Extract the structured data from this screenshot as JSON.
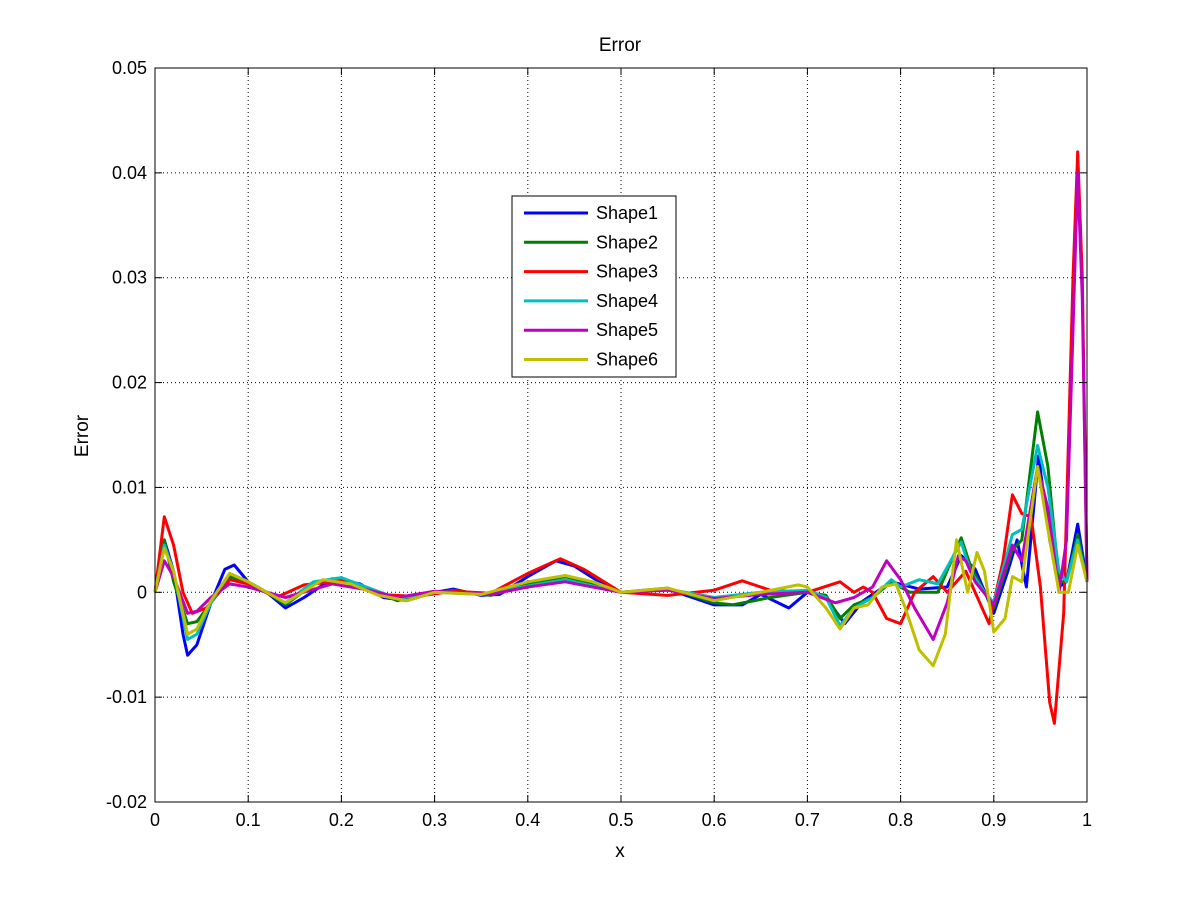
{
  "chart_data": {
    "type": "line",
    "title": "Error",
    "xlabel": "x",
    "ylabel": "Error",
    "xlim": [
      0,
      1
    ],
    "ylim": [
      -0.02,
      0.05
    ],
    "xticks": [
      "0",
      "0.1",
      "0.2",
      "0.3",
      "0.4",
      "0.5",
      "0.6",
      "0.7",
      "0.8",
      "0.9",
      "1"
    ],
    "yticks": [
      "-0.02",
      "-0.01",
      "0",
      "0.01",
      "0.02",
      "0.03",
      "0.04",
      "0.05"
    ],
    "grid": true,
    "legend_position": "upper-center",
    "series": [
      {
        "name": "Shape1",
        "color": "#0000ff",
        "points": [
          [
            0,
            0
          ],
          [
            0.01,
            0.005
          ],
          [
            0.02,
            0.002
          ],
          [
            0.03,
            -0.004
          ],
          [
            0.035,
            -0.006
          ],
          [
            0.045,
            -0.005
          ],
          [
            0.06,
            -0.001
          ],
          [
            0.075,
            0.0022
          ],
          [
            0.085,
            0.0026
          ],
          [
            0.1,
            0.001
          ],
          [
            0.12,
            0
          ],
          [
            0.14,
            -0.0015
          ],
          [
            0.16,
            -0.0005
          ],
          [
            0.19,
            0.0013
          ],
          [
            0.22,
            0.0008
          ],
          [
            0.245,
            -0.0005
          ],
          [
            0.27,
            -0.0008
          ],
          [
            0.3,
            0
          ],
          [
            0.32,
            0.0003
          ],
          [
            0.35,
            -0.0003
          ],
          [
            0.37,
            -0.0002
          ],
          [
            0.4,
            0.0015
          ],
          [
            0.43,
            0.003
          ],
          [
            0.45,
            0.0025
          ],
          [
            0.48,
            0.0008
          ],
          [
            0.5,
            0
          ],
          [
            0.55,
            0.0003
          ],
          [
            0.6,
            -0.0012
          ],
          [
            0.63,
            -0.0012
          ],
          [
            0.65,
            -0.0002
          ],
          [
            0.68,
            -0.0015
          ],
          [
            0.7,
            0
          ],
          [
            0.72,
            -0.0005
          ],
          [
            0.74,
            -0.003
          ],
          [
            0.76,
            -0.0008
          ],
          [
            0.79,
            0.001
          ],
          [
            0.82,
            0.0003
          ],
          [
            0.85,
            0.0005
          ],
          [
            0.865,
            0.0035
          ],
          [
            0.88,
            0.0022
          ],
          [
            0.9,
            -0.002
          ],
          [
            0.915,
            0.002
          ],
          [
            0.925,
            0.005
          ],
          [
            0.935,
            0.0005
          ],
          [
            0.948,
            0.013
          ],
          [
            0.96,
            0.005
          ],
          [
            0.97,
            0.0005
          ],
          [
            0.978,
            0.001
          ],
          [
            0.99,
            0.0065
          ],
          [
            1,
            0.001
          ]
        ]
      },
      {
        "name": "Shape2",
        "color": "#008000",
        "points": [
          [
            0,
            0
          ],
          [
            0.01,
            0.005
          ],
          [
            0.02,
            0.001
          ],
          [
            0.035,
            -0.003
          ],
          [
            0.045,
            -0.0028
          ],
          [
            0.06,
            -0.001
          ],
          [
            0.08,
            0.0015
          ],
          [
            0.1,
            0.0008
          ],
          [
            0.12,
            0
          ],
          [
            0.14,
            -0.0012
          ],
          [
            0.17,
            0.0008
          ],
          [
            0.2,
            0.0012
          ],
          [
            0.23,
            0.0003
          ],
          [
            0.26,
            -0.0008
          ],
          [
            0.29,
            -0.0002
          ],
          [
            0.32,
            0.0002
          ],
          [
            0.36,
            -0.0003
          ],
          [
            0.4,
            0.0008
          ],
          [
            0.44,
            0.0015
          ],
          [
            0.47,
            0.0008
          ],
          [
            0.5,
            0
          ],
          [
            0.55,
            0.0004
          ],
          [
            0.6,
            -0.001
          ],
          [
            0.62,
            -0.0012
          ],
          [
            0.66,
            -0.0005
          ],
          [
            0.7,
            0
          ],
          [
            0.72,
            -0.0003
          ],
          [
            0.735,
            -0.0025
          ],
          [
            0.75,
            -0.0012
          ],
          [
            0.77,
            -0.0005
          ],
          [
            0.79,
            0.001
          ],
          [
            0.81,
            0
          ],
          [
            0.84,
            0
          ],
          [
            0.865,
            0.0052
          ],
          [
            0.875,
            0.0025
          ],
          [
            0.89,
            0
          ],
          [
            0.9,
            -0.0015
          ],
          [
            0.92,
            0.004
          ],
          [
            0.93,
            0.005
          ],
          [
            0.947,
            0.0172
          ],
          [
            0.958,
            0.012
          ],
          [
            0.97,
            0.001
          ],
          [
            0.978,
            0.001
          ],
          [
            0.99,
            0.0055
          ],
          [
            1,
            0.001
          ]
        ]
      },
      {
        "name": "Shape3",
        "color": "#ff0000",
        "points": [
          [
            0,
            0
          ],
          [
            0.01,
            0.0072
          ],
          [
            0.02,
            0.0045
          ],
          [
            0.03,
            0
          ],
          [
            0.04,
            -0.002
          ],
          [
            0.055,
            -0.0015
          ],
          [
            0.08,
            0.0012
          ],
          [
            0.1,
            0.0008
          ],
          [
            0.13,
            -0.0005
          ],
          [
            0.16,
            0.0007
          ],
          [
            0.2,
            0.0011
          ],
          [
            0.24,
            -0.0002
          ],
          [
            0.28,
            -0.0004
          ],
          [
            0.32,
            0.0001
          ],
          [
            0.36,
            -0.0001
          ],
          [
            0.4,
            0.0018
          ],
          [
            0.435,
            0.0032
          ],
          [
            0.46,
            0.0022
          ],
          [
            0.5,
            0
          ],
          [
            0.55,
            -0.0003
          ],
          [
            0.6,
            0.0002
          ],
          [
            0.63,
            0.0011
          ],
          [
            0.66,
            0.0002
          ],
          [
            0.7,
            0
          ],
          [
            0.735,
            0.001
          ],
          [
            0.75,
            0
          ],
          [
            0.76,
            0.0005
          ],
          [
            0.77,
            0
          ],
          [
            0.785,
            -0.0025
          ],
          [
            0.8,
            -0.003
          ],
          [
            0.815,
            0
          ],
          [
            0.835,
            0.0015
          ],
          [
            0.85,
            0
          ],
          [
            0.87,
            0.002
          ],
          [
            0.885,
            -0.001
          ],
          [
            0.895,
            -0.003
          ],
          [
            0.91,
            0.003
          ],
          [
            0.92,
            0.0093
          ],
          [
            0.93,
            0.0075
          ],
          [
            0.94,
            0.0072
          ],
          [
            0.95,
            0.0005
          ],
          [
            0.96,
            -0.0105
          ],
          [
            0.965,
            -0.0125
          ],
          [
            0.975,
            -0.002
          ],
          [
            0.985,
            0.03
          ],
          [
            0.99,
            0.042
          ],
          [
            0.995,
            0.03
          ],
          [
            1,
            0.001
          ]
        ]
      },
      {
        "name": "Shape4",
        "color": "#00bfbf",
        "points": [
          [
            0,
            0
          ],
          [
            0.01,
            0.0045
          ],
          [
            0.02,
            0.002
          ],
          [
            0.035,
            -0.0045
          ],
          [
            0.045,
            -0.004
          ],
          [
            0.06,
            -0.001
          ],
          [
            0.08,
            0.0018
          ],
          [
            0.1,
            0.001
          ],
          [
            0.12,
            0
          ],
          [
            0.14,
            -0.001
          ],
          [
            0.17,
            0.001
          ],
          [
            0.2,
            0.0014
          ],
          [
            0.23,
            0.0004
          ],
          [
            0.26,
            -0.0006
          ],
          [
            0.3,
            0
          ],
          [
            0.35,
            -0.0002
          ],
          [
            0.4,
            0.0006
          ],
          [
            0.44,
            0.0012
          ],
          [
            0.47,
            0.0006
          ],
          [
            0.5,
            0
          ],
          [
            0.55,
            0.0003
          ],
          [
            0.6,
            -0.0005
          ],
          [
            0.65,
            0
          ],
          [
            0.7,
            0.0002
          ],
          [
            0.72,
            -0.0005
          ],
          [
            0.735,
            -0.0032
          ],
          [
            0.75,
            -0.0015
          ],
          [
            0.77,
            -0.0005
          ],
          [
            0.79,
            0.0012
          ],
          [
            0.8,
            0.0005
          ],
          [
            0.82,
            0.0012
          ],
          [
            0.84,
            0.0008
          ],
          [
            0.865,
            0.0048
          ],
          [
            0.875,
            0.002
          ],
          [
            0.89,
            0
          ],
          [
            0.9,
            -0.001
          ],
          [
            0.92,
            0.0055
          ],
          [
            0.93,
            0.006
          ],
          [
            0.947,
            0.014
          ],
          [
            0.958,
            0.01
          ],
          [
            0.97,
            0.002
          ],
          [
            0.978,
            0.001
          ],
          [
            0.99,
            0.005
          ],
          [
            1,
            0.001
          ]
        ]
      },
      {
        "name": "Shape5",
        "color": "#bf00bf",
        "points": [
          [
            0,
            0
          ],
          [
            0.01,
            0.003
          ],
          [
            0.02,
            0.0015
          ],
          [
            0.035,
            -0.002
          ],
          [
            0.045,
            -0.0018
          ],
          [
            0.06,
            -0.0005
          ],
          [
            0.08,
            0.0008
          ],
          [
            0.1,
            0.0005
          ],
          [
            0.14,
            -0.0005
          ],
          [
            0.19,
            0.0008
          ],
          [
            0.23,
            0.0002
          ],
          [
            0.26,
            -0.0005
          ],
          [
            0.3,
            0.0001
          ],
          [
            0.36,
            -0.0002
          ],
          [
            0.4,
            0.0005
          ],
          [
            0.44,
            0.001
          ],
          [
            0.5,
            0
          ],
          [
            0.55,
            0.0002
          ],
          [
            0.6,
            -0.0006
          ],
          [
            0.65,
            -0.0002
          ],
          [
            0.7,
            0
          ],
          [
            0.73,
            -0.001
          ],
          [
            0.75,
            -0.0005
          ],
          [
            0.77,
            0.0005
          ],
          [
            0.785,
            0.003
          ],
          [
            0.8,
            0.0012
          ],
          [
            0.815,
            -0.0015
          ],
          [
            0.835,
            -0.0045
          ],
          [
            0.85,
            -0.001
          ],
          [
            0.862,
            0.0035
          ],
          [
            0.87,
            0.003
          ],
          [
            0.88,
            0.001
          ],
          [
            0.9,
            -0.0012
          ],
          [
            0.92,
            0.0045
          ],
          [
            0.93,
            0.003
          ],
          [
            0.947,
            0.012
          ],
          [
            0.958,
            0.008
          ],
          [
            0.97,
            0
          ],
          [
            0.978,
            0.005
          ],
          [
            0.985,
            0.025
          ],
          [
            0.99,
            0.04
          ],
          [
            0.995,
            0.028
          ],
          [
            1,
            0.001
          ]
        ]
      },
      {
        "name": "Shape6",
        "color": "#bfbf00",
        "points": [
          [
            0,
            0
          ],
          [
            0.01,
            0.0042
          ],
          [
            0.02,
            0.002
          ],
          [
            0.035,
            -0.004
          ],
          [
            0.045,
            -0.0035
          ],
          [
            0.06,
            -0.0008
          ],
          [
            0.08,
            0.0018
          ],
          [
            0.1,
            0.001
          ],
          [
            0.12,
            0
          ],
          [
            0.14,
            -0.001
          ],
          [
            0.18,
            0.0012
          ],
          [
            0.21,
            0.0008
          ],
          [
            0.24,
            -0.0003
          ],
          [
            0.27,
            -0.0008
          ],
          [
            0.3,
            0
          ],
          [
            0.35,
            -0.0002
          ],
          [
            0.4,
            0.001
          ],
          [
            0.44,
            0.0016
          ],
          [
            0.47,
            0.001
          ],
          [
            0.5,
            0
          ],
          [
            0.55,
            0.0004
          ],
          [
            0.6,
            -0.0008
          ],
          [
            0.65,
            0
          ],
          [
            0.69,
            0.0007
          ],
          [
            0.7,
            0.0005
          ],
          [
            0.72,
            -0.0015
          ],
          [
            0.735,
            -0.0035
          ],
          [
            0.75,
            -0.0015
          ],
          [
            0.765,
            -0.0012
          ],
          [
            0.78,
            0.0005
          ],
          [
            0.795,
            0.0008
          ],
          [
            0.805,
            -0.0015
          ],
          [
            0.82,
            -0.0055
          ],
          [
            0.835,
            -0.007
          ],
          [
            0.848,
            -0.004
          ],
          [
            0.86,
            0.005
          ],
          [
            0.872,
            0
          ],
          [
            0.882,
            0.0038
          ],
          [
            0.89,
            0.002
          ],
          [
            0.9,
            -0.0038
          ],
          [
            0.912,
            -0.0025
          ],
          [
            0.92,
            0.0015
          ],
          [
            0.93,
            0.001
          ],
          [
            0.947,
            0.012
          ],
          [
            0.958,
            0.006
          ],
          [
            0.97,
            0
          ],
          [
            0.98,
            0
          ],
          [
            0.99,
            0.0045
          ],
          [
            1,
            0.001
          ]
        ]
      }
    ]
  }
}
